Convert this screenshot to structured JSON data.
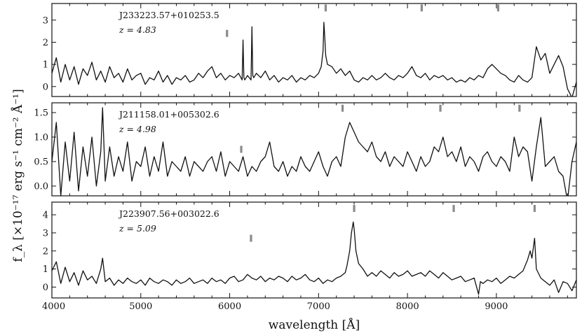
{
  "chart_data": {
    "type": "line",
    "xlabel": "wavelength [Å]",
    "ylabel": "f_λ [×10⁻¹⁷ erg s⁻¹ cm⁻² Å⁻¹]",
    "xlim": [
      4000,
      9900
    ],
    "xticks": [
      4000,
      5000,
      6000,
      7000,
      8000,
      9000
    ],
    "panels": [
      {
        "object": "J233223.57+010253.5",
        "redshift": "z = 4.83",
        "z": 4.83,
        "ylim": [
          -0.45,
          3.75
        ],
        "yticks": [
          0,
          1,
          2,
          3
        ],
        "line_markers": [
          5970,
          7080,
          8160,
          9020
        ],
        "spectrum_x": [
          4000,
          4050,
          4100,
          4150,
          4200,
          4250,
          4300,
          4350,
          4400,
          4450,
          4500,
          4550,
          4600,
          4650,
          4700,
          4750,
          4800,
          4850,
          4900,
          4950,
          5000,
          5050,
          5100,
          5150,
          5200,
          5250,
          5300,
          5350,
          5400,
          5450,
          5500,
          5550,
          5600,
          5650,
          5700,
          5750,
          5800,
          5850,
          5900,
          5950,
          6000,
          6050,
          6100,
          6140,
          6150,
          6160,
          6170,
          6200,
          6240,
          6250,
          6260,
          6270,
          6300,
          6350,
          6400,
          6450,
          6500,
          6550,
          6600,
          6650,
          6700,
          6750,
          6800,
          6850,
          6900,
          6950,
          7000,
          7030,
          7050,
          7060,
          7070,
          7080,
          7100,
          7150,
          7200,
          7250,
          7300,
          7350,
          7400,
          7450,
          7500,
          7550,
          7600,
          7650,
          7700,
          7750,
          7800,
          7850,
          7900,
          7950,
          8000,
          8050,
          8100,
          8150,
          8200,
          8250,
          8300,
          8350,
          8400,
          8450,
          8500,
          8550,
          8600,
          8650,
          8700,
          8750,
          8800,
          8850,
          8900,
          8950,
          9000,
          9050,
          9100,
          9150,
          9200,
          9250,
          9300,
          9350,
          9400,
          9450,
          9500,
          9550,
          9600,
          9650,
          9700,
          9750,
          9800,
          9850,
          9900
        ],
        "spectrum_y": [
          0.6,
          1.3,
          0.2,
          1.0,
          0.3,
          0.9,
          0.1,
          0.8,
          0.5,
          1.1,
          0.3,
          0.7,
          0.2,
          0.9,
          0.4,
          0.6,
          0.2,
          0.8,
          0.3,
          0.5,
          0.6,
          0.1,
          0.4,
          0.3,
          0.7,
          0.2,
          0.5,
          0.1,
          0.4,
          0.3,
          0.5,
          0.2,
          0.3,
          0.6,
          0.4,
          0.7,
          0.9,
          0.4,
          0.6,
          0.3,
          0.5,
          0.4,
          0.6,
          0.3,
          2.1,
          0.4,
          0.3,
          0.5,
          0.3,
          2.7,
          0.5,
          0.4,
          0.6,
          0.4,
          0.7,
          0.3,
          0.5,
          0.2,
          0.4,
          0.3,
          0.5,
          0.2,
          0.4,
          0.3,
          0.5,
          0.4,
          0.6,
          0.9,
          1.6,
          2.9,
          2.2,
          1.4,
          1.0,
          0.9,
          0.6,
          0.8,
          0.5,
          0.7,
          0.3,
          0.2,
          0.4,
          0.3,
          0.5,
          0.3,
          0.4,
          0.6,
          0.4,
          0.3,
          0.5,
          0.4,
          0.6,
          0.9,
          0.5,
          0.4,
          0.6,
          0.3,
          0.5,
          0.4,
          0.5,
          0.3,
          0.4,
          0.2,
          0.3,
          0.2,
          0.4,
          0.3,
          0.5,
          0.4,
          0.8,
          1.0,
          0.8,
          0.6,
          0.5,
          0.3,
          0.2,
          0.5,
          0.3,
          0.2,
          0.4,
          1.8,
          1.2,
          1.5,
          0.6,
          1.0,
          1.4,
          0.9,
          -0.1,
          -0.5,
          0.2
        ]
      },
      {
        "object": "J211158.01+005302.6",
        "redshift": "z = 4.98",
        "z": 4.98,
        "ylim": [
          -0.2,
          1.7
        ],
        "yticks": [
          0.0,
          0.5,
          1.0,
          1.5
        ],
        "line_markers": [
          6130,
          7270,
          8370,
          9260
        ],
        "spectrum_x": [
          4000,
          4050,
          4100,
          4150,
          4200,
          4250,
          4300,
          4350,
          4400,
          4450,
          4500,
          4550,
          4570,
          4600,
          4650,
          4700,
          4750,
          4800,
          4850,
          4900,
          4950,
          5000,
          5050,
          5100,
          5150,
          5200,
          5250,
          5300,
          5350,
          5400,
          5450,
          5500,
          5550,
          5600,
          5650,
          5700,
          5750,
          5800,
          5850,
          5900,
          5950,
          6000,
          6050,
          6100,
          6150,
          6200,
          6250,
          6300,
          6350,
          6400,
          6450,
          6500,
          6550,
          6600,
          6650,
          6700,
          6750,
          6800,
          6850,
          6900,
          6950,
          7000,
          7050,
          7100,
          7150,
          7200,
          7250,
          7300,
          7350,
          7400,
          7450,
          7500,
          7550,
          7600,
          7650,
          7700,
          7750,
          7800,
          7850,
          7900,
          7950,
          8000,
          8050,
          8100,
          8150,
          8200,
          8250,
          8300,
          8350,
          8400,
          8450,
          8500,
          8550,
          8600,
          8650,
          8700,
          8750,
          8800,
          8850,
          8900,
          8950,
          9000,
          9050,
          9100,
          9150,
          9200,
          9250,
          9300,
          9350,
          9400,
          9450,
          9500,
          9550,
          9600,
          9650,
          9700,
          9750,
          9800,
          9850,
          9900
        ],
        "spectrum_y": [
          0.5,
          1.3,
          -0.2,
          0.9,
          0.1,
          1.1,
          -0.1,
          0.8,
          0.2,
          1.0,
          0.0,
          0.7,
          1.6,
          0.1,
          0.8,
          0.2,
          0.6,
          0.3,
          0.9,
          0.1,
          0.5,
          0.4,
          0.8,
          0.2,
          0.6,
          0.3,
          0.9,
          0.2,
          0.5,
          0.4,
          0.3,
          0.6,
          0.2,
          0.5,
          0.4,
          0.3,
          0.5,
          0.6,
          0.3,
          0.7,
          0.2,
          0.5,
          0.4,
          0.3,
          0.6,
          0.2,
          0.4,
          0.3,
          0.5,
          0.6,
          0.9,
          0.4,
          0.3,
          0.5,
          0.2,
          0.4,
          0.3,
          0.6,
          0.4,
          0.3,
          0.5,
          0.7,
          0.4,
          0.2,
          0.5,
          0.6,
          0.4,
          1.0,
          1.3,
          1.1,
          0.9,
          0.8,
          0.7,
          0.9,
          0.6,
          0.5,
          0.7,
          0.4,
          0.6,
          0.5,
          0.4,
          0.7,
          0.5,
          0.3,
          0.6,
          0.4,
          0.5,
          0.8,
          0.7,
          1.0,
          0.6,
          0.7,
          0.5,
          0.8,
          0.4,
          0.6,
          0.5,
          0.3,
          0.6,
          0.7,
          0.5,
          0.4,
          0.6,
          0.5,
          0.3,
          1.0,
          0.6,
          0.8,
          0.7,
          0.1,
          0.8,
          1.4,
          0.4,
          0.5,
          0.6,
          0.3,
          0.2,
          -0.3,
          0.5,
          0.9
        ]
      },
      {
        "object": "J223907.56+003022.6",
        "redshift": "z = 5.09",
        "z": 5.09,
        "ylim": [
          -0.6,
          4.7
        ],
        "yticks": [
          0,
          1,
          2,
          3,
          4
        ],
        "line_markers": [
          6240,
          7400,
          8520,
          9430
        ],
        "spectrum_x": [
          4000,
          4050,
          4100,
          4150,
          4200,
          4250,
          4300,
          4350,
          4400,
          4450,
          4500,
          4550,
          4570,
          4600,
          4650,
          4700,
          4750,
          4800,
          4850,
          4900,
          4950,
          5000,
          5050,
          5100,
          5150,
          5200,
          5250,
          5300,
          5350,
          5400,
          5450,
          5500,
          5550,
          5600,
          5650,
          5700,
          5750,
          5800,
          5850,
          5900,
          5950,
          6000,
          6050,
          6100,
          6150,
          6200,
          6250,
          6300,
          6350,
          6400,
          6450,
          6500,
          6550,
          6600,
          6650,
          6700,
          6750,
          6800,
          6850,
          6900,
          6950,
          7000,
          7050,
          7100,
          7150,
          7200,
          7250,
          7300,
          7320,
          7350,
          7370,
          7390,
          7400,
          7420,
          7450,
          7500,
          7550,
          7600,
          7650,
          7700,
          7750,
          7800,
          7850,
          7900,
          7950,
          8000,
          8050,
          8100,
          8150,
          8200,
          8250,
          8300,
          8350,
          8400,
          8450,
          8500,
          8550,
          8600,
          8650,
          8700,
          8750,
          8800,
          8820,
          8850,
          8900,
          8950,
          9000,
          9050,
          9100,
          9150,
          9200,
          9250,
          9300,
          9350,
          9380,
          9400,
          9430,
          9450,
          9500,
          9550,
          9600,
          9650,
          9700,
          9750,
          9800,
          9850,
          9900
        ],
        "spectrum_y": [
          0.9,
          1.4,
          0.2,
          1.1,
          0.3,
          0.8,
          0.1,
          0.9,
          0.4,
          0.6,
          0.2,
          1.0,
          1.6,
          0.3,
          0.5,
          0.1,
          0.4,
          0.2,
          0.5,
          0.3,
          0.2,
          0.4,
          0.1,
          0.5,
          0.3,
          0.2,
          0.4,
          0.3,
          0.1,
          0.4,
          0.2,
          0.3,
          0.5,
          0.2,
          0.3,
          0.4,
          0.2,
          0.5,
          0.3,
          0.4,
          0.2,
          0.5,
          0.6,
          0.3,
          0.4,
          0.7,
          0.5,
          0.4,
          0.6,
          0.3,
          0.5,
          0.4,
          0.6,
          0.5,
          0.3,
          0.6,
          0.4,
          0.5,
          0.7,
          0.4,
          0.3,
          0.5,
          0.2,
          0.4,
          0.3,
          0.5,
          0.6,
          0.8,
          1.2,
          2.0,
          3.0,
          3.6,
          3.2,
          2.0,
          1.3,
          1.0,
          0.6,
          0.8,
          0.6,
          0.9,
          0.7,
          0.5,
          0.8,
          0.6,
          0.7,
          0.9,
          0.6,
          0.7,
          0.8,
          0.6,
          0.9,
          0.7,
          0.5,
          0.8,
          0.6,
          0.4,
          0.5,
          0.6,
          0.3,
          0.4,
          0.5,
          -0.4,
          0.3,
          0.2,
          0.4,
          0.3,
          0.5,
          0.2,
          0.4,
          0.6,
          0.5,
          0.7,
          0.9,
          1.5,
          2.0,
          1.6,
          2.7,
          1.0,
          0.5,
          0.3,
          0.1,
          0.4,
          -0.3,
          0.3,
          0.2,
          -0.2,
          0.4
        ]
      }
    ]
  }
}
